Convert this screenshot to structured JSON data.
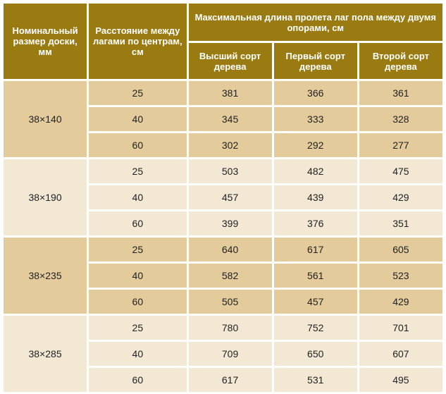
{
  "header": {
    "col_size": "Номинальный размер доски, мм",
    "col_spacing": "Расстояние между лагами по центрам, см",
    "group": "Максимальная длина пролета лаг пола между двумя опорами, см",
    "grade_top": "Высший сорт дерева",
    "grade_first": "Первый сорт дерева",
    "grade_second": "Второй сорт дерева"
  },
  "groups": [
    {
      "size": "38×140",
      "shade": "dark",
      "rows": [
        {
          "spacing": "25",
          "top": "381",
          "first": "366",
          "second": "361"
        },
        {
          "spacing": "40",
          "top": "345",
          "first": "333",
          "second": "328"
        },
        {
          "spacing": "60",
          "top": "302",
          "first": "292",
          "second": "277"
        }
      ]
    },
    {
      "size": "38×190",
      "shade": "light",
      "rows": [
        {
          "spacing": "25",
          "top": "503",
          "first": "482",
          "second": "475"
        },
        {
          "spacing": "40",
          "top": "457",
          "first": "439",
          "second": "429"
        },
        {
          "spacing": "60",
          "top": "399",
          "first": "376",
          "second": "351"
        }
      ]
    },
    {
      "size": "38×235",
      "shade": "dark",
      "rows": [
        {
          "spacing": "25",
          "top": "640",
          "first": "617",
          "second": "605"
        },
        {
          "spacing": "40",
          "top": "582",
          "first": "561",
          "second": "523"
        },
        {
          "spacing": "60",
          "top": "505",
          "first": "457",
          "second": "429"
        }
      ]
    },
    {
      "size": "38×285",
      "shade": "light",
      "rows": [
        {
          "spacing": "25",
          "top": "780",
          "first": "752",
          "second": "701"
        },
        {
          "spacing": "40",
          "top": "709",
          "first": "650",
          "second": "607"
        },
        {
          "spacing": "60",
          "top": "617",
          "first": "531",
          "second": "495"
        }
      ]
    }
  ]
}
